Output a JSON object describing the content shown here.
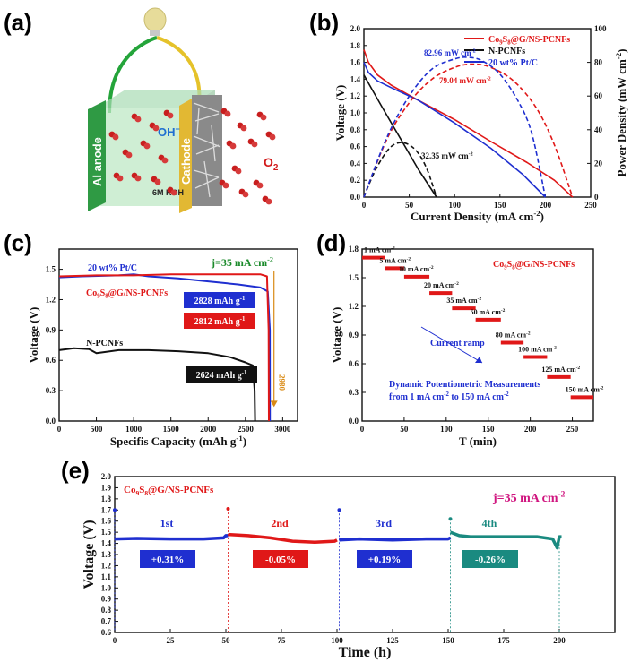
{
  "panels": {
    "a": "(a)",
    "b": "(b)",
    "c": "(c)",
    "d": "(d)",
    "e": "(e)"
  },
  "schematic": {
    "anode_label": "Al anode",
    "cathode_label": "Cathode",
    "electrolyte_label": "6M KOH",
    "ion_label": "OH",
    "ion_sup": "−",
    "oxygen_label": "O",
    "oxygen_sub": "2"
  },
  "colors": {
    "red": "#e01818",
    "blue": "#1f2fd0",
    "black": "#111111",
    "green": "#1a8a2a",
    "teal": "#1a8a80",
    "magenta": "#d0157f",
    "orange": "#d98a14"
  },
  "chart_data": [
    {
      "id": "b",
      "type": "line",
      "xlabel": "Current Density (mA cm",
      "xlabel_sup": "-2",
      "xlabel_end": ")",
      "ylabel": "Voltage (V)",
      "y2label": "Power Density (mW cm",
      "y2label_sup": "-2",
      "y2label_end": ")",
      "xlim": [
        0,
        250
      ],
      "ylim": [
        0,
        2.0
      ],
      "y2lim": [
        0,
        100
      ],
      "xticks": [
        0,
        50,
        100,
        150,
        200,
        250
      ],
      "yticks": [
        0.0,
        0.2,
        0.4,
        0.6,
        0.8,
        1.0,
        1.2,
        1.4,
        1.6,
        1.8,
        2.0
      ],
      "y2ticks": [
        0,
        20,
        40,
        60,
        80,
        100
      ],
      "legend": [
        "Co9S8@G/NS-PCNFs",
        "N-PCNFs",
        "20 wt% Pt/C"
      ],
      "legend_position": "top-right",
      "annotations": [
        {
          "text": "82.96 mW cm",
          "sup": "-2",
          "color": "blue"
        },
        {
          "text": "79.04 mW cm",
          "sup": "-2",
          "color": "red"
        },
        {
          "text": "32.35 mW cm",
          "sup": "-2",
          "color": "black"
        }
      ],
      "series": [
        {
          "name": "Co9S8@G/NS-PCNFs",
          "color": "red",
          "axis": "left",
          "x": [
            0,
            5,
            15,
            30,
            60,
            100,
            140,
            180,
            210,
            230
          ],
          "y": [
            1.75,
            1.6,
            1.45,
            1.33,
            1.15,
            0.92,
            0.66,
            0.41,
            0.2,
            0.0
          ]
        },
        {
          "name": "N-PCNFs",
          "color": "black",
          "axis": "left",
          "x": [
            0,
            10,
            20,
            40,
            60,
            80
          ],
          "y": [
            1.45,
            1.26,
            1.07,
            0.7,
            0.33,
            0.0
          ]
        },
        {
          "name": "20 wt% Pt/C",
          "color": "blue",
          "axis": "left",
          "x": [
            0,
            5,
            15,
            30,
            60,
            100,
            140,
            175,
            200
          ],
          "y": [
            1.6,
            1.48,
            1.38,
            1.3,
            1.15,
            0.88,
            0.58,
            0.27,
            0.0
          ]
        },
        {
          "name": "Co9S8@G/NS-PCNFs power",
          "color": "red",
          "axis": "right",
          "dashed": true,
          "x": [
            0,
            25,
            50,
            75,
            100,
            120,
            140,
            165,
            190,
            210,
            230
          ],
          "y": [
            0,
            34,
            56,
            70,
            77,
            79,
            77,
            69,
            53,
            31,
            0
          ]
        },
        {
          "name": "N-PCNFs power",
          "color": "black",
          "axis": "right",
          "dashed": true,
          "x": [
            0,
            10,
            20,
            30,
            40,
            50,
            60,
            70,
            80
          ],
          "y": [
            0,
            13,
            23,
            30,
            32.35,
            31,
            26,
            16,
            0
          ]
        },
        {
          "name": "20 wt% Pt/C power",
          "color": "blue",
          "axis": "right",
          "dashed": true,
          "x": [
            0,
            25,
            50,
            75,
            100,
            115,
            130,
            150,
            170,
            185,
            200
          ],
          "y": [
            0,
            35,
            60,
            76,
            82,
            82.96,
            81,
            73,
            57,
            38,
            0
          ]
        }
      ]
    },
    {
      "id": "c",
      "type": "line",
      "title": "j=35 mA cm",
      "title_sup": "-2",
      "xlabel": "Specifis Capacity (mAh g",
      "xlabel_sup": "-1",
      "xlabel_end": ")",
      "ylabel": "Voltage (V)",
      "xlim": [
        0,
        3200
      ],
      "ylim": [
        0,
        1.7
      ],
      "xticks": [
        0,
        500,
        1000,
        1500,
        2000,
        2500,
        3000
      ],
      "yticks": [
        0.0,
        0.3,
        0.6,
        0.9,
        1.2,
        1.5
      ],
      "labels": [
        {
          "text": "20 wt% Pt/C",
          "color": "blue"
        },
        {
          "text": "Co9S8@G/NS-PCNFs",
          "color": "red"
        },
        {
          "text": "N-PCNFs",
          "color": "black"
        }
      ],
      "boxes": [
        {
          "text": "2828 mAh g",
          "sup": "-1",
          "color": "blue"
        },
        {
          "text": "2812 mAh g",
          "sup": "-1",
          "color": "red"
        },
        {
          "text": "2624 mAh g",
          "sup": "-1",
          "color": "black"
        }
      ],
      "marker_text": "2980",
      "series": [
        {
          "name": "20 wt% Pt/C",
          "color": "blue",
          "x": [
            0,
            300,
            800,
            1000,
            1200,
            1600,
            2000,
            2400,
            2700,
            2800,
            2828,
            2830
          ],
          "y": [
            1.42,
            1.43,
            1.44,
            1.45,
            1.43,
            1.41,
            1.38,
            1.35,
            1.32,
            1.28,
            0.9,
            0.0
          ]
        },
        {
          "name": "Co9S8@G/NS-PCNFs",
          "color": "red",
          "x": [
            0,
            500,
            1000,
            1500,
            2000,
            2500,
            2700,
            2790,
            2812,
            2815
          ],
          "y": [
            1.43,
            1.44,
            1.44,
            1.45,
            1.45,
            1.45,
            1.45,
            1.43,
            0.9,
            0.0
          ]
        },
        {
          "name": "N-PCNFs",
          "color": "black",
          "x": [
            0,
            200,
            400,
            500,
            800,
            1200,
            1600,
            2000,
            2300,
            2500,
            2600,
            2624,
            2630
          ],
          "y": [
            0.7,
            0.72,
            0.71,
            0.67,
            0.7,
            0.7,
            0.69,
            0.67,
            0.63,
            0.58,
            0.55,
            0.3,
            0.0
          ]
        }
      ]
    },
    {
      "id": "d",
      "type": "line",
      "title": "Co9S8@G/NS-PCNFs",
      "xlabel": "T (min)",
      "ylabel": "Voltage (V)",
      "xlim": [
        0,
        275
      ],
      "ylim": [
        0,
        1.8
      ],
      "xticks": [
        0,
        50,
        100,
        150,
        200,
        250
      ],
      "yticks": [
        0.0,
        0.3,
        0.6,
        0.9,
        1.2,
        1.5,
        1.8
      ],
      "ramp_label": "Current ramp",
      "footnote_line1": "Dynamic Potentiometric Measurements",
      "footnote_line2": "from 1 mA cm",
      "footnote_sup": "-2",
      "footnote_end": " to 150 mA cm",
      "footnote_sup2": "-2",
      "steps": [
        {
          "label": "1 mA cm",
          "sup": "-2",
          "x0": 0,
          "x1": 27,
          "v": 1.71
        },
        {
          "label": "5 mA cm",
          "sup": "-2",
          "x0": 27,
          "x1": 50,
          "v": 1.6
        },
        {
          "label": "10 mA cm",
          "sup": "-2",
          "x0": 50,
          "x1": 80,
          "v": 1.51
        },
        {
          "label": "20 mA cm",
          "sup": "-2",
          "x0": 80,
          "x1": 107,
          "v": 1.34
        },
        {
          "label": "35 mA cm",
          "sup": "-2",
          "x0": 107,
          "x1": 135,
          "v": 1.18
        },
        {
          "label": "50 mA cm",
          "sup": "-2",
          "x0": 135,
          "x1": 165,
          "v": 1.06
        },
        {
          "label": "80 mA cm",
          "sup": "-2",
          "x0": 165,
          "x1": 192,
          "v": 0.82
        },
        {
          "label": "100 mA cm",
          "sup": "-2",
          "x0": 192,
          "x1": 220,
          "v": 0.67
        },
        {
          "label": "125 mA cm",
          "sup": "-2",
          "x0": 220,
          "x1": 248,
          "v": 0.46
        },
        {
          "label": "150 mA cm",
          "sup": "-2",
          "x0": 248,
          "x1": 275,
          "v": 0.25
        }
      ]
    },
    {
      "id": "e",
      "type": "line",
      "title": "j=35 mA cm",
      "title_sup": "-2",
      "series_label": "Co9S8@G/NS-PCNFs",
      "xlabel": "Time (h)",
      "ylabel": "Voltage (V)",
      "xlim": [
        0,
        225
      ],
      "ylim": [
        0.6,
        2.0
      ],
      "xticks": [
        0,
        25,
        50,
        75,
        100,
        125,
        150,
        175,
        200
      ],
      "yticks": [
        0.6,
        0.7,
        0.8,
        0.9,
        1.0,
        1.1,
        1.2,
        1.3,
        1.4,
        1.5,
        1.6,
        1.7,
        1.8,
        1.9,
        2.0
      ],
      "cycles": [
        {
          "name": "1st",
          "change": "+0.31%",
          "color": "blue",
          "x": [
            0,
            10,
            25,
            40,
            49,
            50,
            51
          ],
          "y": [
            1.44,
            1.445,
            1.44,
            1.44,
            1.45,
            1.47,
            1.47
          ],
          "spike": 1.7
        },
        {
          "name": "2nd",
          "change": "-0.05%",
          "color": "red",
          "x": [
            51,
            60,
            70,
            80,
            90,
            99,
            100
          ],
          "y": [
            1.48,
            1.47,
            1.45,
            1.42,
            1.41,
            1.42,
            1.43
          ],
          "spike": 1.71
        },
        {
          "name": "3rd",
          "change": "+0.19%",
          "color": "blue",
          "x": [
            101,
            110,
            125,
            140,
            150,
            151
          ],
          "y": [
            1.43,
            1.44,
            1.43,
            1.44,
            1.44,
            1.45
          ],
          "spike": 1.7
        },
        {
          "name": "4th",
          "change": "-0.26%",
          "color": "teal",
          "x": [
            151,
            155,
            160,
            175,
            190,
            197,
            199,
            200,
            201
          ],
          "y": [
            1.5,
            1.47,
            1.46,
            1.46,
            1.46,
            1.44,
            1.36,
            1.46,
            1.46
          ],
          "spike": 1.62
        }
      ]
    }
  ]
}
